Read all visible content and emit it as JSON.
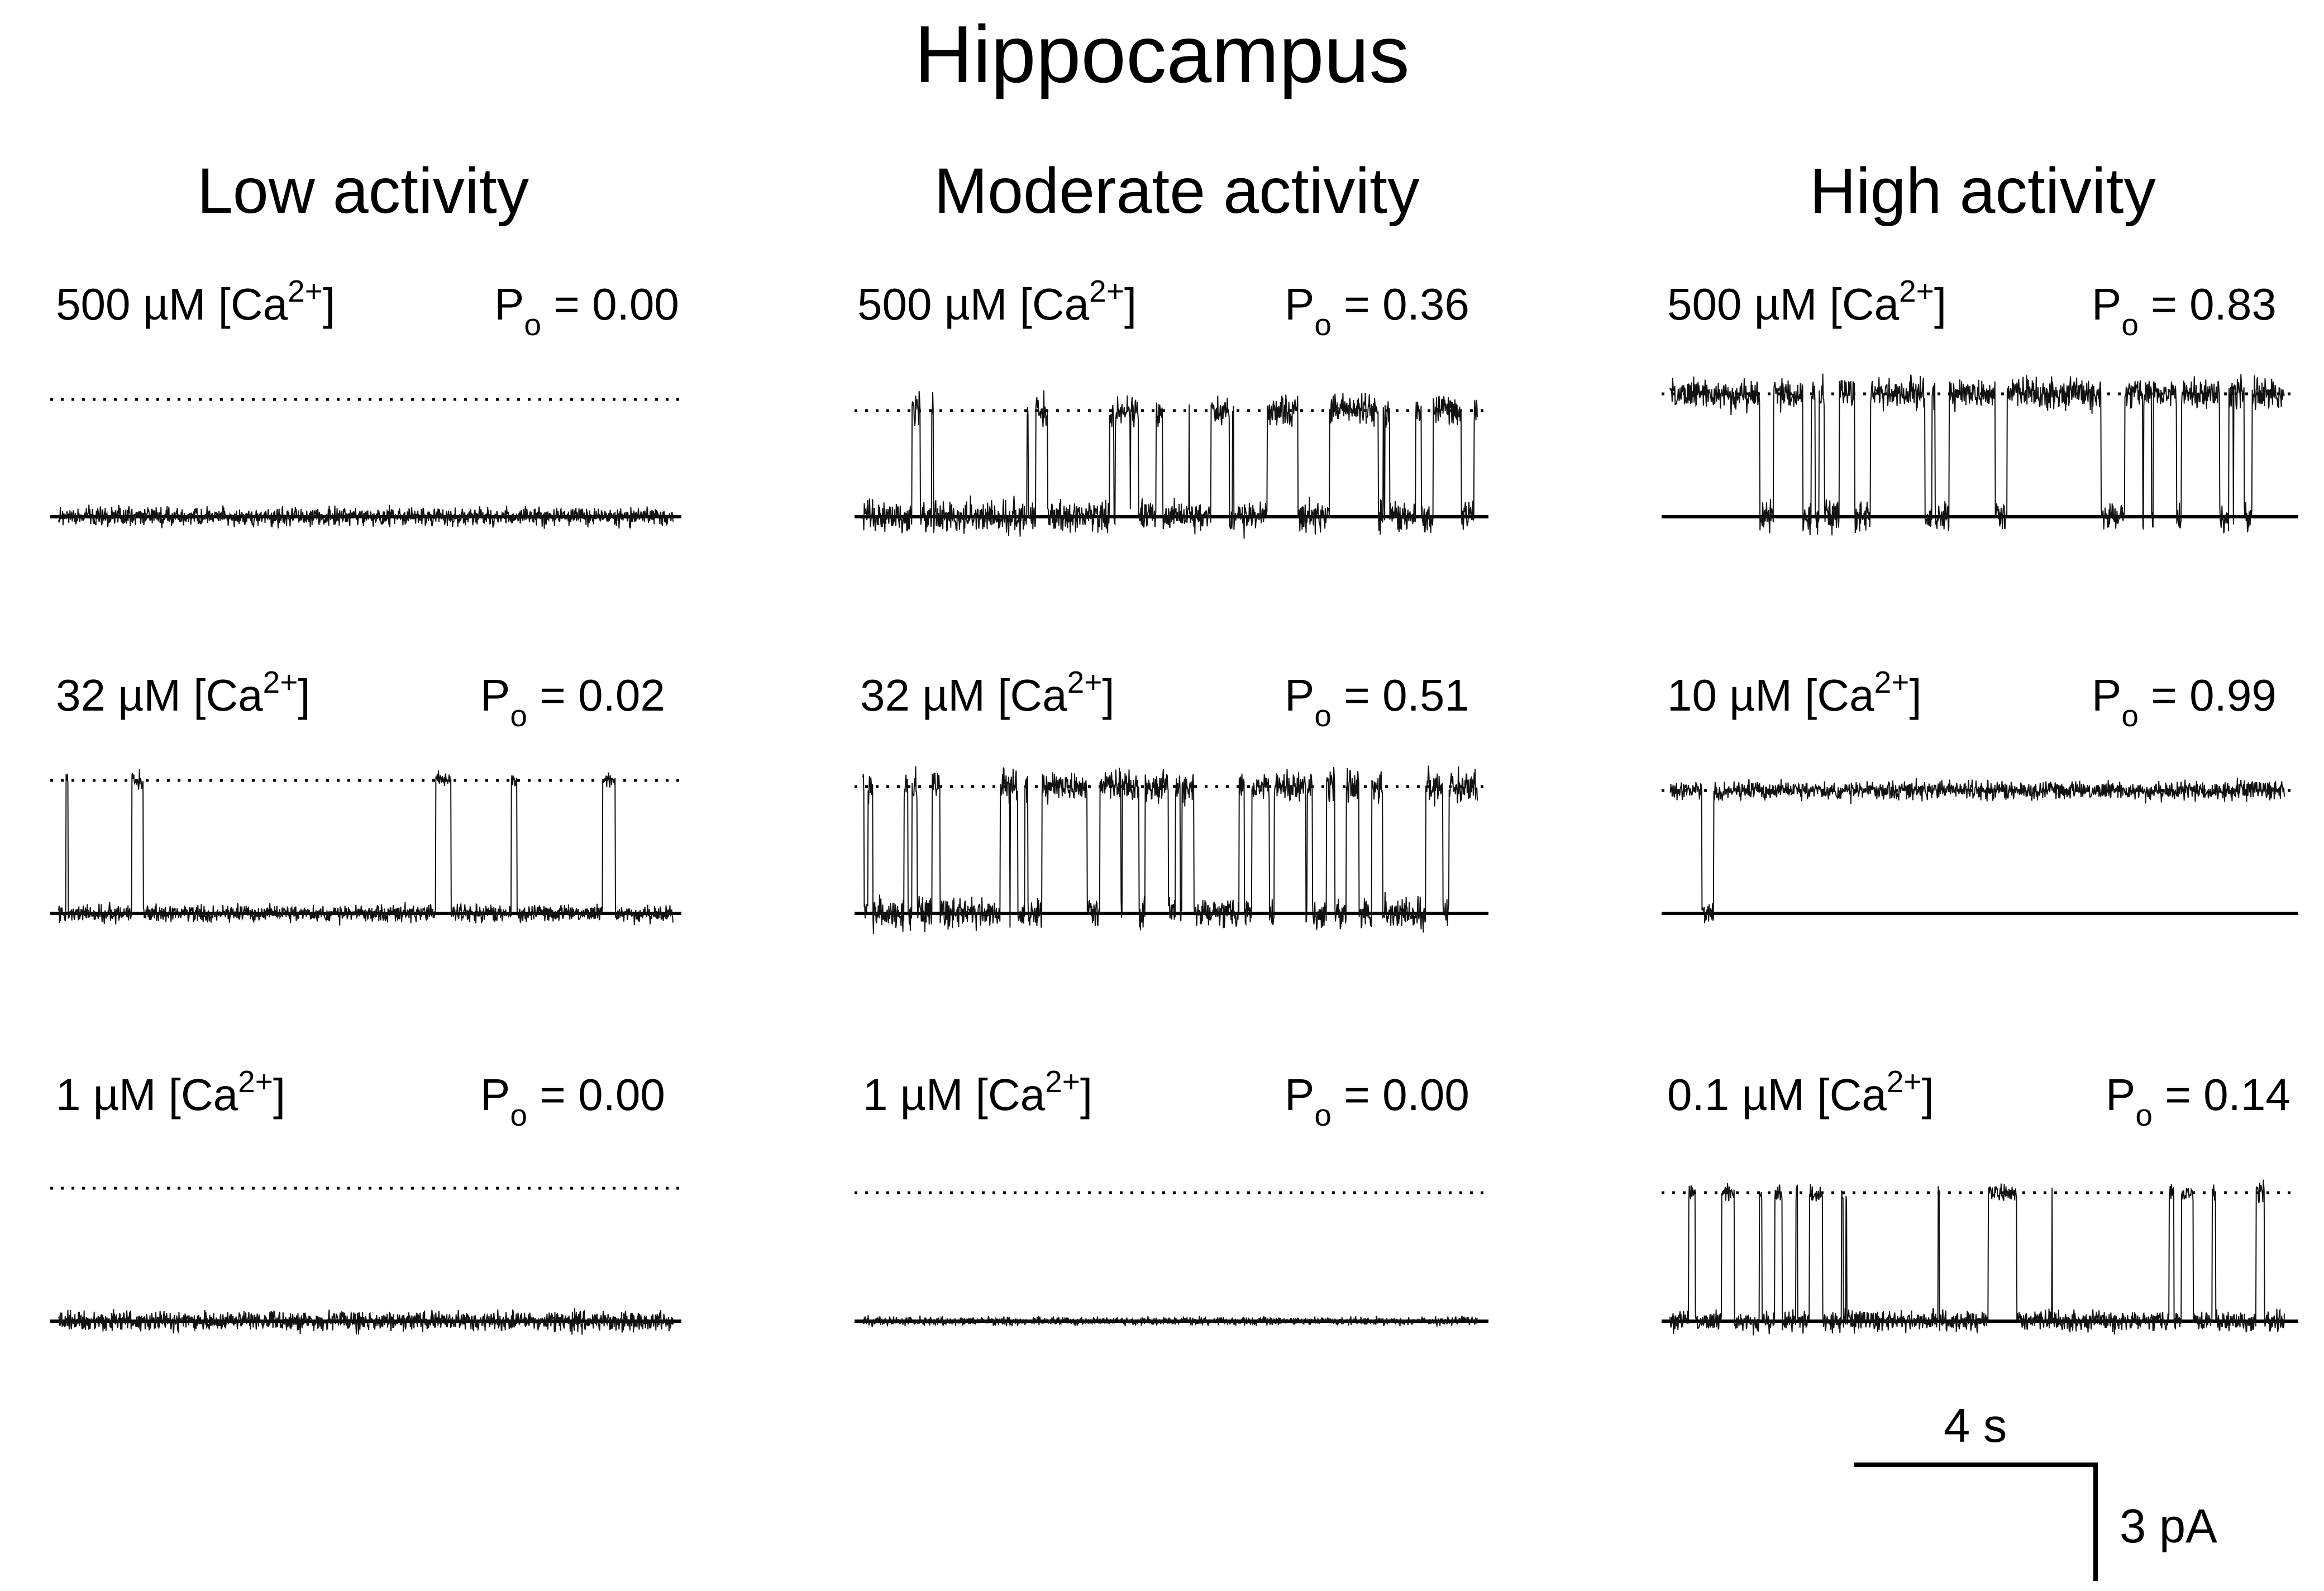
{
  "title": "Hippocampus",
  "columns": [
    {
      "title": "Low activity"
    },
    {
      "title": "Moderate activity"
    },
    {
      "title": "High activity"
    }
  ],
  "panels": [
    {
      "conc": "500 µM [Ca",
      "ion": "2+",
      "close": "]",
      "po_label": "P",
      "po_sub": "o",
      "po_value": " = 0.00",
      "po": 0.0,
      "noise": 0.55
    },
    {
      "conc": "500 µM [Ca",
      "ion": "2+",
      "close": "]",
      "po_label": "P",
      "po_sub": "o",
      "po_value": " = 0.36",
      "po": 0.36,
      "noise": 0.9
    },
    {
      "conc": "500 µM [Ca",
      "ion": "2+",
      "close": "]",
      "po_label": "P",
      "po_sub": "o",
      "po_value": " = 0.83",
      "po": 0.83,
      "noise": 0.9
    },
    {
      "conc": "32 µM [Ca",
      "ion": "2+",
      "close": "]",
      "po_label": "P",
      "po_sub": "o",
      "po_value": " = 0.02",
      "po": 0.02,
      "noise": 0.5
    },
    {
      "conc": "32 µM [Ca",
      "ion": "2+",
      "close": "]",
      "po_label": "P",
      "po_sub": "o",
      "po_value": " = 0.51",
      "po": 0.51,
      "noise": 0.9
    },
    {
      "conc": "10 µM [Ca",
      "ion": "2+",
      "close": "]",
      "po_label": "P",
      "po_sub": "o",
      "po_value": " = 0.99",
      "po": 0.99,
      "noise": 0.55
    },
    {
      "conc": "1 µM [Ca",
      "ion": "2+",
      "close": "]",
      "po_label": "P",
      "po_sub": "o",
      "po_value": " = 0.00",
      "po": 0.0,
      "noise": 0.6
    },
    {
      "conc": "1 µM [Ca",
      "ion": "2+",
      "close": "]",
      "po_label": "P",
      "po_sub": "o",
      "po_value": " = 0.00",
      "po": 0.0,
      "noise": 0.25
    },
    {
      "conc": "0.1 µM [Ca",
      "ion": "2+",
      "close": "]",
      "po_label": "P",
      "po_sub": "o",
      "po_value": " = 0.14",
      "po": 0.14,
      "noise": 0.6
    }
  ],
  "scale_bar": {
    "time": "4 s",
    "current": "3 pA"
  }
}
